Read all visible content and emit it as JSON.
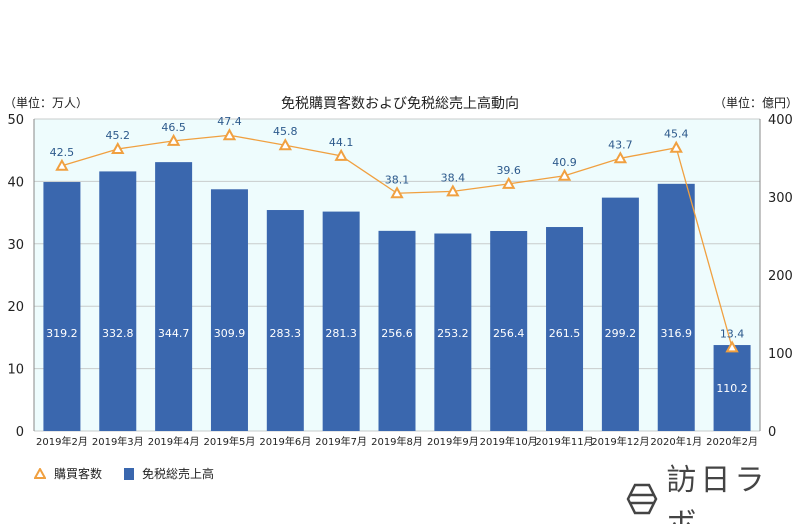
{
  "chart_data": {
    "type": "bar+line",
    "title": "免税購買客数および免税総売上高動向",
    "ylabel_left": "（単位：万人）",
    "ylabel_right": "（単位：億円）",
    "ylim_left": [
      0,
      50
    ],
    "ylim_right": [
      0,
      400
    ],
    "yticks_left": [
      "0",
      "10",
      "20",
      "30",
      "40",
      "50"
    ],
    "yticks_right": [
      "0",
      "100",
      "200",
      "300",
      "400"
    ],
    "grid": true,
    "categories": [
      "2019年2月",
      "2019年3月",
      "2019年4月",
      "2019年5月",
      "2019年6月",
      "2019年7月",
      "2019年8月",
      "2019年9月",
      "2019年10月",
      "2019年11月",
      "2019年12月",
      "2020年1月",
      "2020年2月"
    ],
    "series": [
      {
        "name": "購買客数",
        "type": "line",
        "axis": "left",
        "color": "#f0a040",
        "values": [
          42.5,
          45.2,
          46.5,
          47.4,
          45.8,
          44.1,
          38.1,
          38.4,
          39.6,
          40.9,
          43.7,
          45.4,
          13.4
        ]
      },
      {
        "name": "免税総売上高",
        "type": "bar",
        "axis": "right",
        "color": "#3a67ae",
        "values": [
          319.2,
          332.8,
          344.7,
          309.9,
          283.3,
          281.3,
          256.6,
          253.2,
          256.4,
          261.5,
          299.2,
          316.9,
          110.2
        ]
      }
    ],
    "legend": "bottom-left"
  },
  "logo": {
    "text": "訪日ラボ"
  },
  "colors": {
    "plot_bg": "#eefcfd",
    "bar": "#3a67ae",
    "line": "#f0a040"
  }
}
